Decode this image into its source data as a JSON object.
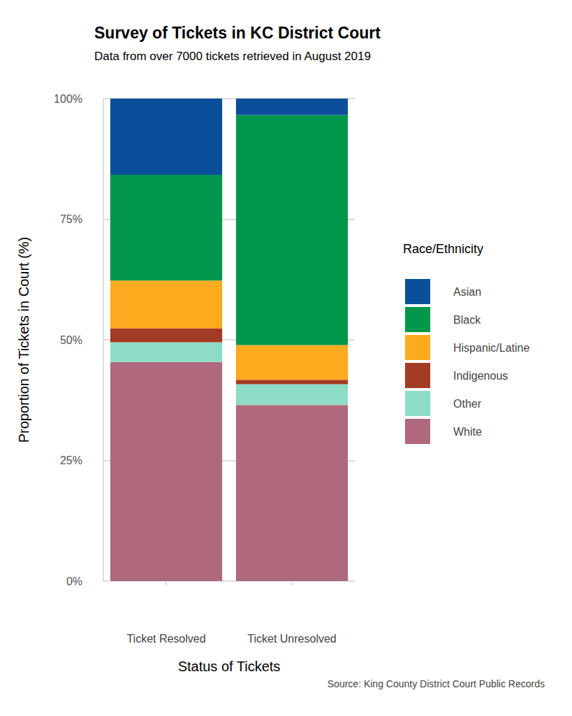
{
  "chart_data": {
    "type": "bar",
    "title": "Survey of Tickets in KC District Court",
    "subtitle": "Data from over 7000 tickets retrieved in August 2019",
    "x_label": "Status of Tickets",
    "y_label": "Proportion of Tickets in Court (%)",
    "legend_title": "Race/Ethnicity",
    "caption": "Source: King County District Court Public Records",
    "categories": [
      "Ticket Resolved",
      "Ticket Unresolved"
    ],
    "series": [
      {
        "name": "Asian",
        "color": "#0b4f9a",
        "values": [
          15.8,
          3.4
        ]
      },
      {
        "name": "Black",
        "color": "#00964c",
        "values": [
          21.9,
          47.7
        ]
      },
      {
        "name": "Hispanic/Latine",
        "color": "#fbab1d",
        "values": [
          9.9,
          7.2
        ]
      },
      {
        "name": "Indigenous",
        "color": "#a33a23",
        "values": [
          2.9,
          0.9
        ]
      },
      {
        "name": "Other",
        "color": "#8ddcc6",
        "values": [
          4.1,
          4.3
        ]
      },
      {
        "name": "White",
        "color": "#b0687c",
        "values": [
          45.4,
          36.5
        ]
      }
    ],
    "stacked": true,
    "ylim": [
      0,
      100
    ],
    "yticks": [
      {
        "value": 0,
        "label": "0%"
      },
      {
        "value": 25,
        "label": "25%"
      },
      {
        "value": 50,
        "label": "50%"
      },
      {
        "value": 75,
        "label": "75%"
      },
      {
        "value": 100,
        "label": "100%"
      }
    ],
    "grid": true,
    "legend": "right"
  }
}
